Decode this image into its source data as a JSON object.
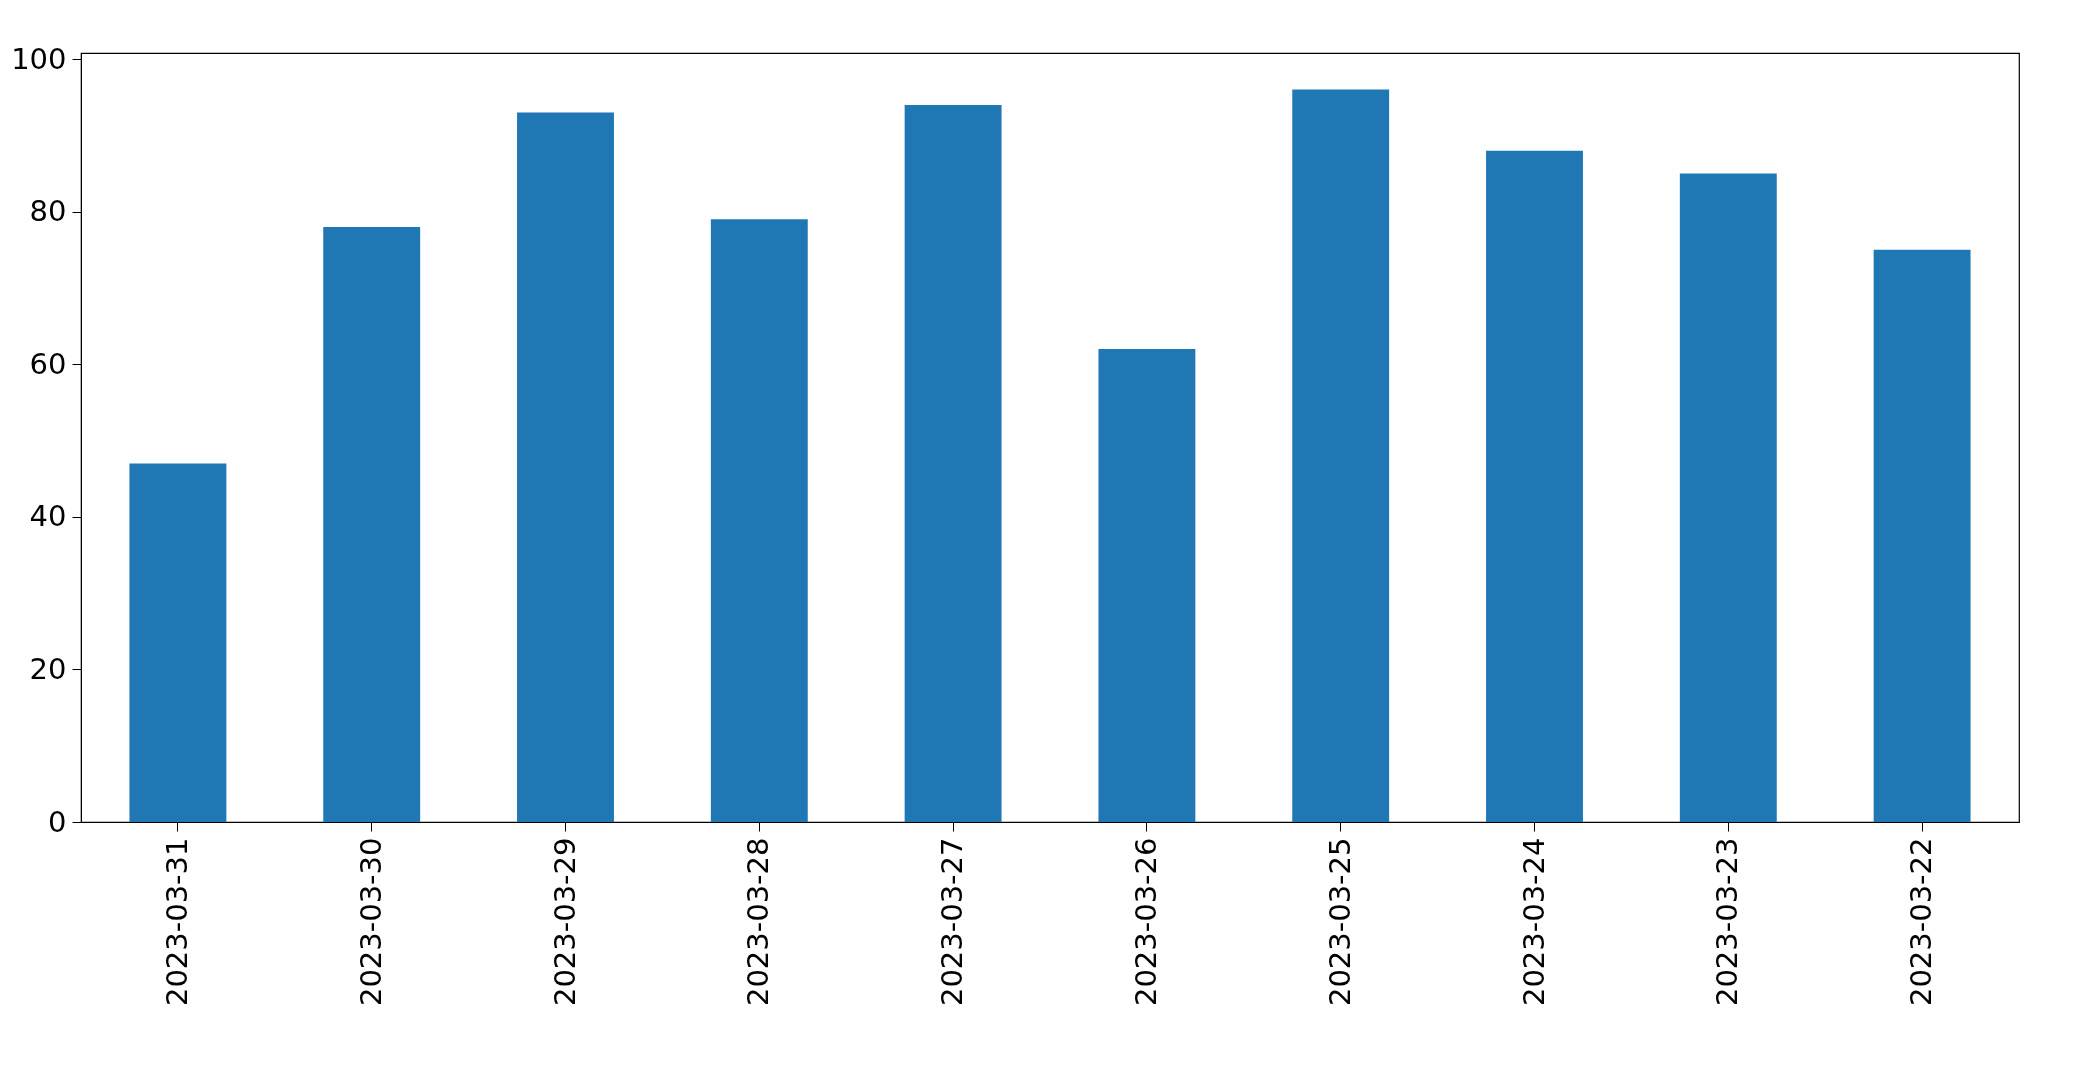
{
  "chart_data": {
    "type": "bar",
    "categories": [
      "2023-03-31",
      "2023-03-30",
      "2023-03-29",
      "2023-03-28",
      "2023-03-27",
      "2023-03-26",
      "2023-03-25",
      "2023-03-24",
      "2023-03-23",
      "2023-03-22"
    ],
    "values": [
      47,
      78,
      93,
      79,
      94,
      62,
      96,
      88,
      85,
      75
    ],
    "color": "#1f77b4",
    "ylim": [
      0,
      100.8
    ],
    "yticks": [
      0,
      20,
      40,
      60,
      80,
      100
    ],
    "grid": false
  }
}
